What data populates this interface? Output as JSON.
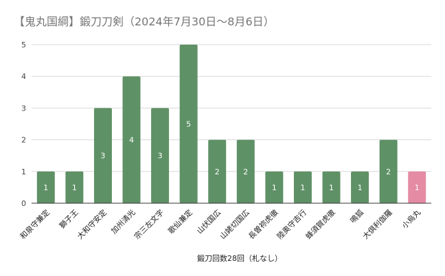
{
  "chart_data": {
    "type": "bar",
    "title": "【鬼丸国綱】鍛刀刀剣（2024年7月30日～8月6日）",
    "xlabel": "鍛刀回数28回（札なし）",
    "ylabel": "",
    "ylim": [
      0,
      5
    ],
    "yticks": [
      "0",
      "1",
      "2",
      "3",
      "4",
      "5"
    ],
    "grid": true,
    "categories": [
      "和泉守兼定",
      "獅子王",
      "大和守安定",
      "加州清光",
      "宗三左文字",
      "歌仙兼定",
      "山伏国広",
      "山姥切国広",
      "長曽祢虎徹",
      "陸奥守吉行",
      "蜂須賀虎徹",
      "鳴狐",
      "大倶利伽羅",
      "小烏丸"
    ],
    "values": [
      1,
      1,
      3,
      4,
      3,
      5,
      2,
      2,
      1,
      1,
      1,
      1,
      2,
      1
    ],
    "highlight_index": 13,
    "colors": {
      "bar": "#5f9166",
      "highlight": "#e58ba4",
      "grid": "#d9d9d9",
      "axis": "#333333"
    }
  }
}
